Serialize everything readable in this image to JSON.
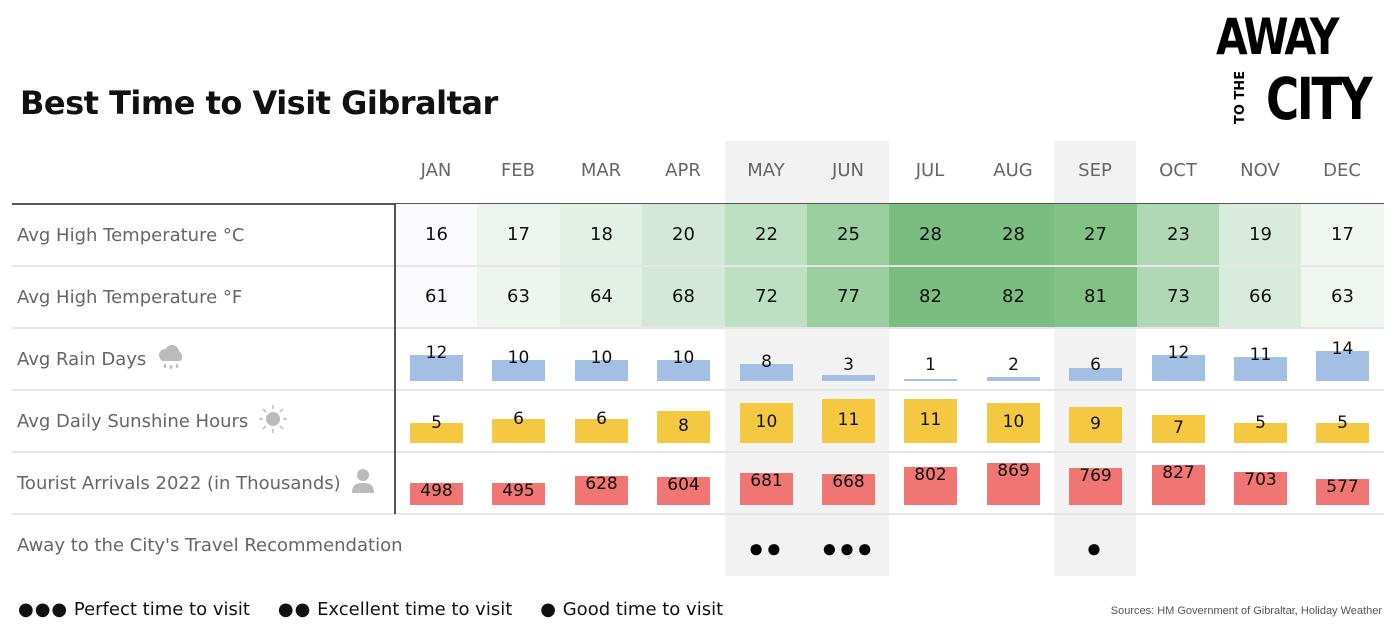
{
  "title": "Best Time to Visit Gibraltar",
  "logo": {
    "line1": "AWAY",
    "line2": "TO THE",
    "line3": "CITY"
  },
  "months": [
    "JAN",
    "FEB",
    "MAR",
    "APR",
    "MAY",
    "JUN",
    "JUL",
    "AUG",
    "SEP",
    "OCT",
    "NOV",
    "DEC"
  ],
  "highlighted_months": [
    "MAY",
    "JUN",
    "SEP"
  ],
  "rows": {
    "temp_c": {
      "label": "Avg High Temperature °C",
      "values": [
        "16",
        "17",
        "18",
        "20",
        "22",
        "25",
        "28",
        "28",
        "27",
        "23",
        "19",
        "17"
      ]
    },
    "temp_f": {
      "label": "Avg High Temperature °F",
      "values": [
        "61",
        "63",
        "64",
        "68",
        "72",
        "77",
        "82",
        "82",
        "81",
        "73",
        "66",
        "63"
      ]
    },
    "rain": {
      "label": "Avg Rain Days",
      "icon": "rain-cloud-icon",
      "values": [
        "12",
        "10",
        "10",
        "10",
        "8",
        "3",
        "1",
        "2",
        "6",
        "12",
        "11",
        "14"
      ]
    },
    "sun": {
      "label": "Avg Daily Sunshine Hours",
      "icon": "sun-icon",
      "values": [
        "5",
        "6",
        "6",
        "8",
        "10",
        "11",
        "11",
        "10",
        "9",
        "7",
        "5",
        "5"
      ]
    },
    "tourists": {
      "label": "Tourist Arrivals 2022 (in Thousands)",
      "icon": "person-icon",
      "values": [
        "498",
        "495",
        "628",
        "604",
        "681",
        "668",
        "802",
        "869",
        "769",
        "827",
        "703",
        "577"
      ]
    },
    "recommendation": {
      "label": "Away to the City's Travel Recommendation",
      "values": [
        "",
        "",
        "",
        "",
        "●●",
        "●●●",
        "",
        "",
        "●",
        "",
        "",
        ""
      ]
    }
  },
  "legend": {
    "perfect": {
      "dots": "●●●",
      "label": "Perfect time to visit"
    },
    "excellent": {
      "dots": "●●",
      "label": "Excellent time to visit"
    },
    "good": {
      "dots": "●",
      "label": "Good time to visit"
    }
  },
  "sources": "Sources: HM Government of Gibraltar, Holiday Weather",
  "colors": {
    "rain_bar": "#a3bfe3",
    "sun_bar": "#f5c842",
    "tourist_bar": "#ef7672",
    "highlight_bg": "#f2f2f2",
    "temp_scale": [
      "#fafafc",
      "#eef5ef",
      "#e3f0e5",
      "#d3e8d6",
      "#bde0c2",
      "#9bcf9f",
      "#7bbd80",
      "#7bbd80",
      "#83c287",
      "#b0d8b4",
      "#d9ecdc",
      "#eff6f0"
    ]
  },
  "chart_data": {
    "type": "table",
    "title": "Best Time to Visit Gibraltar",
    "categories": [
      "JAN",
      "FEB",
      "MAR",
      "APR",
      "MAY",
      "JUN",
      "JUL",
      "AUG",
      "SEP",
      "OCT",
      "NOV",
      "DEC"
    ],
    "series": [
      {
        "name": "Avg High Temperature °C",
        "values": [
          16,
          17,
          18,
          20,
          22,
          25,
          28,
          28,
          27,
          23,
          19,
          17
        ]
      },
      {
        "name": "Avg High Temperature °F",
        "values": [
          61,
          63,
          64,
          68,
          72,
          77,
          82,
          82,
          81,
          73,
          66,
          63
        ]
      },
      {
        "name": "Avg Rain Days",
        "values": [
          12,
          10,
          10,
          10,
          8,
          3,
          1,
          2,
          6,
          12,
          11,
          14
        ]
      },
      {
        "name": "Avg Daily Sunshine Hours",
        "values": [
          5,
          6,
          6,
          8,
          10,
          11,
          11,
          10,
          9,
          7,
          5,
          5
        ]
      },
      {
        "name": "Tourist Arrivals 2022 (in Thousands)",
        "values": [
          498,
          495,
          628,
          604,
          681,
          668,
          802,
          869,
          769,
          827,
          703,
          577
        ]
      },
      {
        "name": "Away to the City's Travel Recommendation",
        "values": [
          0,
          0,
          0,
          0,
          2,
          3,
          0,
          0,
          1,
          0,
          0,
          0
        ]
      }
    ],
    "legend": [
      "●●● Perfect time to visit",
      "●● Excellent time to visit",
      "● Good time to visit"
    ],
    "annotations": [
      "Sources: HM Government of Gibraltar, Holiday Weather"
    ]
  }
}
